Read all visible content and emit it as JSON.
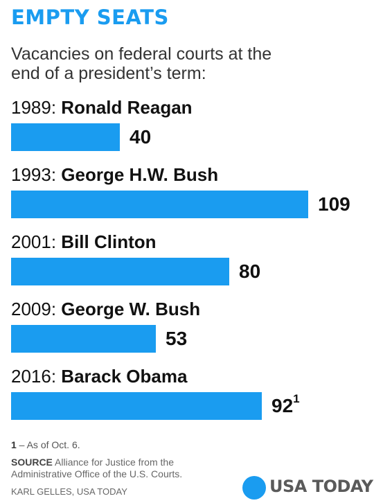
{
  "title": "EMPTY SEATS",
  "subtitle": "Vacancies on federal courts at the end of a president’s term:",
  "colors": {
    "accent": "#1a9cf0",
    "bar": "#1a9cf0"
  },
  "chart_data": {
    "type": "bar",
    "orientation": "horizontal",
    "categories": [
      {
        "year": "1989:",
        "name": "Ronald Reagan"
      },
      {
        "year": "1993:",
        "name": "George H.W. Bush"
      },
      {
        "year": "2001:",
        "name": "Bill Clinton"
      },
      {
        "year": "2009:",
        "name": "George W. Bush"
      },
      {
        "year": "2016:",
        "name": "Barack Obama"
      }
    ],
    "values": [
      40,
      109,
      80,
      53,
      92
    ],
    "value_labels": [
      "40",
      "109",
      "80",
      "53",
      "92"
    ],
    "value_footnote_marks": [
      "",
      "",
      "",
      "",
      "1"
    ],
    "xlim": [
      0,
      109
    ]
  },
  "footnote": {
    "mark": "1",
    "text": " – As of Oct. 6."
  },
  "source": {
    "label": "SOURCE",
    "text": " Alliance for Justice from the Administrative Office of the U.S. Courts."
  },
  "credit": "KARL GELLES, USA TODAY",
  "logo": {
    "text": "USA TODAY"
  }
}
